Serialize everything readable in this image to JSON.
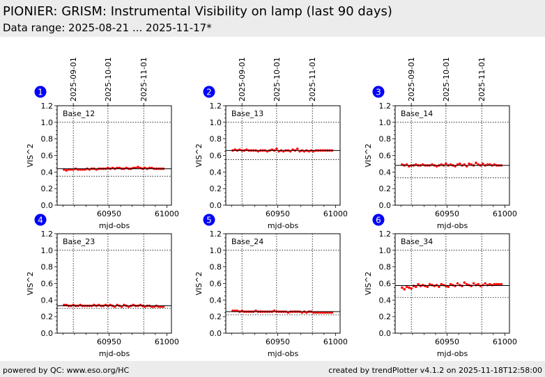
{
  "header": {
    "title": "PIONIER: GRISM: Instrumental Visibility on lamp (last 90 days)",
    "subtitle": "Data range: 2025-08-21 ... 2025-11-17*"
  },
  "footer": {
    "left": "powered by QC: www.eso.org/HC",
    "right": "created by trendPlotter v4.1.2 on 2025-11-18T12:58:00"
  },
  "colors": {
    "points": "#ff0000",
    "badge": "#0000ff",
    "badge_text": "#ffffcc",
    "header_bg": "#ececec"
  },
  "chart_data": {
    "type": "scatter",
    "xlabel": "mjd-obs",
    "ylabel": "VIS^2",
    "xlim": [
      60905,
      61004
    ],
    "ylim": [
      0,
      1.2
    ],
    "xticks": [
      60950,
      61000
    ],
    "xtick_labels": [
      "60950",
      "61000"
    ],
    "yticks": [
      0,
      0.2,
      0.4,
      0.6,
      0.8,
      1.0,
      1.2
    ],
    "ytick_labels": [
      "0.0",
      "0.2",
      "0.4",
      "0.6",
      "0.8",
      "1.0",
      "1.2"
    ],
    "date_ticks": [
      {
        "mjd": 60919,
        "label": "2025-09-01"
      },
      {
        "mjd": 60949,
        "label": "2025-10-01"
      },
      {
        "mjd": 60980,
        "label": "2025-11-01"
      }
    ],
    "x": [
      60911,
      60913,
      60915,
      60917,
      60919,
      60921,
      60923,
      60925,
      60927,
      60929,
      60931,
      60933,
      60935,
      60937,
      60939,
      60941,
      60943,
      60945,
      60947,
      60949,
      60951,
      60953,
      60955,
      60957,
      60959,
      60961,
      60963,
      60965,
      60967,
      60969,
      60971,
      60973,
      60975,
      60977,
      60979,
      60981,
      60983,
      60985,
      60987,
      60989,
      60991,
      60993,
      60995,
      60997
    ],
    "panels": [
      {
        "badge": "1",
        "name": "Base_12",
        "reference": 0.44,
        "lower_limit": 0.35,
        "upper_limit": 1.0,
        "y": [
          0.43,
          0.42,
          0.43,
          0.43,
          0.43,
          0.44,
          0.43,
          0.43,
          0.43,
          0.43,
          0.44,
          0.43,
          0.44,
          0.44,
          0.43,
          0.44,
          0.44,
          0.44,
          0.44,
          0.45,
          0.44,
          0.45,
          0.44,
          0.45,
          0.45,
          0.44,
          0.44,
          0.45,
          0.44,
          0.44,
          0.45,
          0.45,
          0.46,
          0.45,
          0.44,
          0.45,
          0.44,
          0.45,
          0.45,
          0.44,
          0.44,
          0.44,
          0.44,
          0.44
        ]
      },
      {
        "badge": "2",
        "name": "Base_13",
        "reference": 0.66,
        "lower_limit": 0.55,
        "upper_limit": 1.0,
        "y": [
          0.66,
          0.67,
          0.66,
          0.67,
          0.66,
          0.66,
          0.67,
          0.66,
          0.66,
          0.66,
          0.66,
          0.65,
          0.66,
          0.66,
          0.66,
          0.65,
          0.66,
          0.67,
          0.66,
          0.68,
          0.65,
          0.66,
          0.65,
          0.66,
          0.66,
          0.65,
          0.67,
          0.66,
          0.68,
          0.65,
          0.66,
          0.65,
          0.66,
          0.65,
          0.66,
          0.65,
          0.66,
          0.66,
          0.66,
          0.66,
          0.66,
          0.66,
          0.66,
          0.66
        ]
      },
      {
        "badge": "3",
        "name": "Base_14",
        "reference": 0.48,
        "lower_limit": 0.33,
        "upper_limit": 1.0,
        "y": [
          0.49,
          0.48,
          0.49,
          0.47,
          0.48,
          0.48,
          0.49,
          0.48,
          0.48,
          0.49,
          0.48,
          0.48,
          0.48,
          0.49,
          0.48,
          0.47,
          0.48,
          0.49,
          0.48,
          0.5,
          0.48,
          0.49,
          0.48,
          0.47,
          0.49,
          0.5,
          0.48,
          0.49,
          0.47,
          0.5,
          0.49,
          0.48,
          0.51,
          0.49,
          0.48,
          0.5,
          0.48,
          0.49,
          0.49,
          0.48,
          0.49,
          0.48,
          0.48,
          0.48
        ]
      },
      {
        "badge": "4",
        "name": "Base_23",
        "reference": 0.33,
        "lower_limit": 0.3,
        "upper_limit": 1.0,
        "y": [
          0.34,
          0.34,
          0.33,
          0.33,
          0.34,
          0.33,
          0.33,
          0.34,
          0.33,
          0.33,
          0.33,
          0.33,
          0.33,
          0.34,
          0.33,
          0.34,
          0.33,
          0.33,
          0.34,
          0.33,
          0.34,
          0.33,
          0.32,
          0.34,
          0.33,
          0.32,
          0.34,
          0.33,
          0.32,
          0.33,
          0.34,
          0.33,
          0.33,
          0.34,
          0.33,
          0.32,
          0.33,
          0.33,
          0.32,
          0.32,
          0.33,
          0.32,
          0.32,
          0.32
        ]
      },
      {
        "badge": "5",
        "name": "Base_24",
        "reference": 0.26,
        "lower_limit": 0.22,
        "upper_limit": 1.0,
        "y": [
          0.27,
          0.27,
          0.27,
          0.26,
          0.27,
          0.26,
          0.26,
          0.26,
          0.26,
          0.26,
          0.27,
          0.26,
          0.26,
          0.26,
          0.26,
          0.26,
          0.26,
          0.26,
          0.27,
          0.26,
          0.26,
          0.26,
          0.26,
          0.26,
          0.25,
          0.26,
          0.26,
          0.26,
          0.26,
          0.26,
          0.25,
          0.26,
          0.25,
          0.26,
          0.26,
          0.25,
          0.25,
          0.25,
          0.25,
          0.25,
          0.25,
          0.25,
          0.25,
          0.25
        ]
      },
      {
        "badge": "6",
        "name": "Base_34",
        "reference": 0.575,
        "lower_limit": 0.43,
        "upper_limit": 1.0,
        "y": [
          0.55,
          0.53,
          0.56,
          0.55,
          0.54,
          0.57,
          0.56,
          0.59,
          0.57,
          0.58,
          0.57,
          0.56,
          0.59,
          0.58,
          0.57,
          0.58,
          0.56,
          0.59,
          0.58,
          0.57,
          0.56,
          0.59,
          0.58,
          0.57,
          0.6,
          0.58,
          0.57,
          0.61,
          0.59,
          0.58,
          0.57,
          0.6,
          0.58,
          0.59,
          0.57,
          0.58,
          0.6,
          0.58,
          0.59,
          0.58,
          0.59,
          0.59,
          0.59,
          0.59
        ]
      }
    ]
  }
}
